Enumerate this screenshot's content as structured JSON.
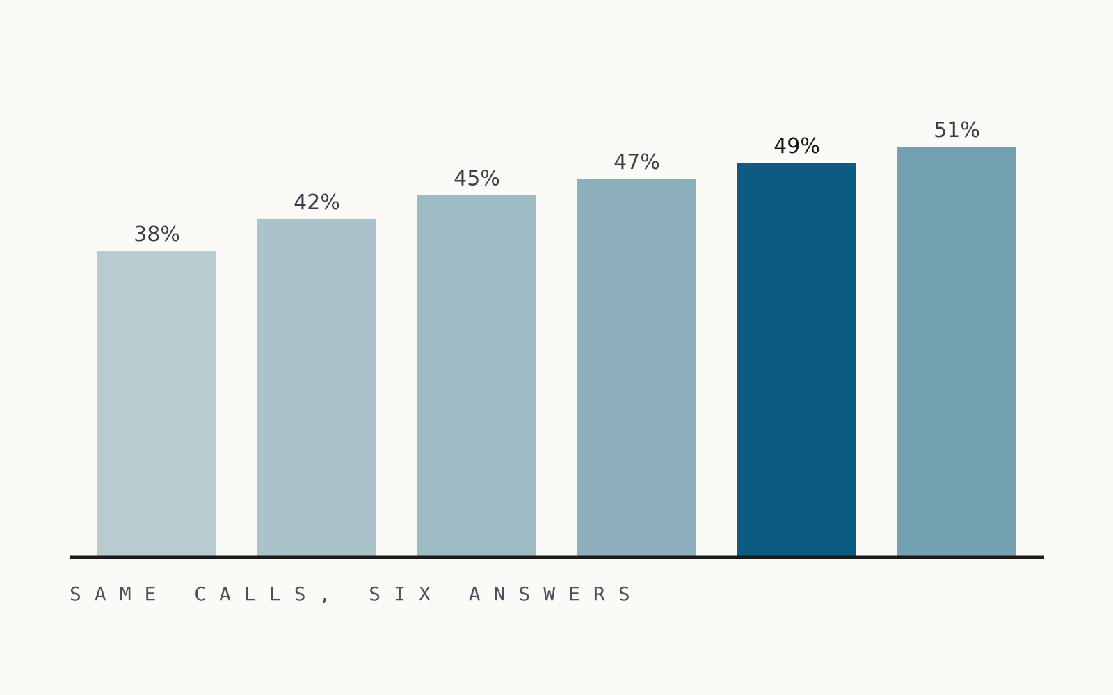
{
  "caption": "SAME CALLS, SIX ANSWERS",
  "colors": {
    "background": "#fbfaf7",
    "baseline": "#1a1a1a",
    "label": "#3a3f47",
    "highlight_label": "#111418",
    "caption": "#4a505c"
  },
  "chart_data": {
    "type": "bar",
    "title": "",
    "xlabel": "",
    "ylabel": "",
    "ylim": [
      0,
      60
    ],
    "grid": false,
    "legend": "none",
    "values": [
      38,
      42,
      45,
      47,
      49,
      51
    ],
    "value_labels": [
      "38%",
      "42%",
      "45%",
      "47%",
      "49%",
      "51%"
    ],
    "bar_colors": [
      "#b8cbd0",
      "#aac3ca",
      "#9ebac3",
      "#8eb0bc",
      "#0b5c80",
      "#74a1b2"
    ],
    "highlight_index": 4
  }
}
